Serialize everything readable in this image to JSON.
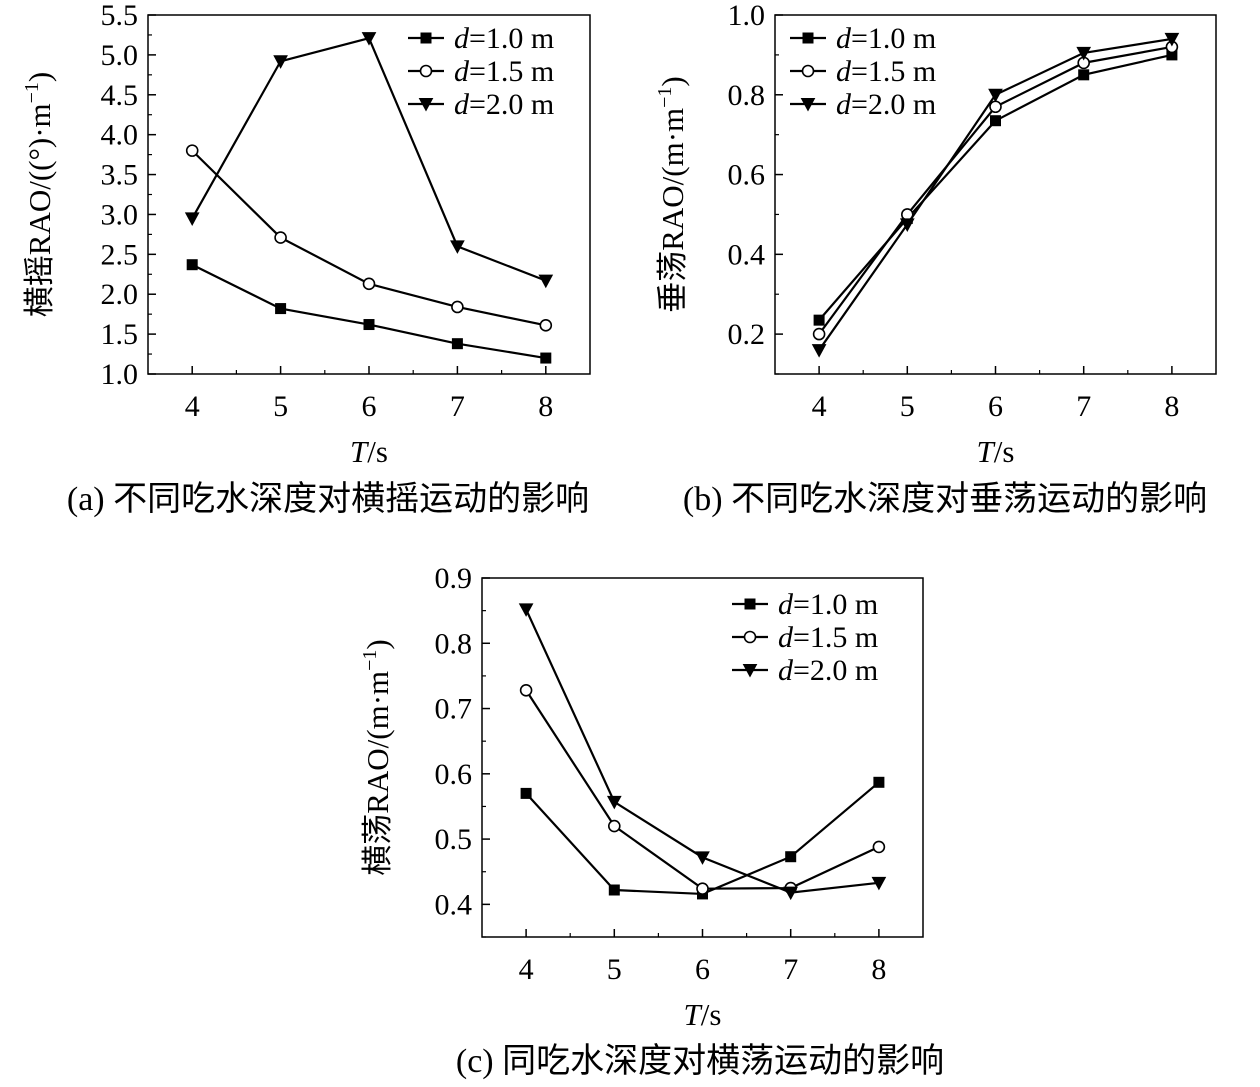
{
  "chart_data": [
    {
      "id": "a",
      "type": "line",
      "caption": "(a) 不同吃水深度对横摇运动的影响",
      "xlabel_var": "T",
      "xlabel_unit": "/s",
      "ylabel": "横摇RAO/((°)·m",
      "ylabel_sup": "−1",
      "ylabel_close": ")",
      "x": [
        4,
        5,
        6,
        7,
        8
      ],
      "xlim": [
        3.5,
        8.5
      ],
      "ylim": [
        1.0,
        5.5
      ],
      "xticks": [
        "4",
        "5",
        "6",
        "7",
        "8"
      ],
      "yticks": [
        "1.0",
        "1.5",
        "2.0",
        "2.5",
        "3.0",
        "3.5",
        "4.0",
        "4.5",
        "5.0",
        "5.5"
      ],
      "legend_position": "top-right",
      "series": [
        {
          "name_var": "d",
          "name_rest": "=1.0 m",
          "marker": "square",
          "values": [
            2.37,
            1.82,
            1.62,
            1.38,
            1.2
          ]
        },
        {
          "name_var": "d",
          "name_rest": "=1.5 m",
          "marker": "circle",
          "values": [
            3.8,
            2.71,
            2.13,
            1.84,
            1.61
          ]
        },
        {
          "name_var": "d",
          "name_rest": "=2.0 m",
          "marker": "triangle-down",
          "values": [
            2.95,
            4.92,
            5.21,
            2.6,
            2.17
          ]
        }
      ]
    },
    {
      "id": "b",
      "type": "line",
      "caption": "(b) 不同吃水深度对垂荡运动的影响",
      "xlabel_var": "T",
      "xlabel_unit": "/s",
      "ylabel": "垂荡RAO/(m·m",
      "ylabel_sup": "−1",
      "ylabel_close": ")",
      "x": [
        4,
        5,
        6,
        7,
        8
      ],
      "xlim": [
        3.5,
        8.5
      ],
      "ylim": [
        0.1,
        1.0
      ],
      "xticks": [
        "4",
        "5",
        "6",
        "7",
        "8"
      ],
      "yticks": [
        "0.2",
        "0.4",
        "0.6",
        "0.8",
        "1.0"
      ],
      "legend_position": "top-left",
      "series": [
        {
          "name_var": "d",
          "name_rest": "=1.0 m",
          "marker": "square",
          "values": [
            0.235,
            0.49,
            0.735,
            0.85,
            0.9
          ]
        },
        {
          "name_var": "d",
          "name_rest": "=1.5 m",
          "marker": "circle",
          "values": [
            0.2,
            0.5,
            0.77,
            0.88,
            0.92
          ]
        },
        {
          "name_var": "d",
          "name_rest": "=2.0 m",
          "marker": "triangle-down",
          "values": [
            0.16,
            0.475,
            0.8,
            0.905,
            0.94
          ]
        }
      ]
    },
    {
      "id": "c",
      "type": "line",
      "caption": "(c) 同吃水深度对横荡运动的影响",
      "xlabel_var": "T",
      "xlabel_unit": "/s",
      "ylabel": "横荡RAO/(m·m",
      "ylabel_sup": "−1",
      "ylabel_close": ")",
      "x": [
        4,
        5,
        6,
        7,
        8
      ],
      "xlim": [
        3.5,
        8.5
      ],
      "ylim": [
        0.35,
        0.9
      ],
      "xticks": [
        "4",
        "5",
        "6",
        "7",
        "8"
      ],
      "yticks": [
        "0.4",
        "0.5",
        "0.6",
        "0.7",
        "0.8",
        "0.9"
      ],
      "legend_position": "top-right",
      "series": [
        {
          "name_var": "d",
          "name_rest": "=1.0 m",
          "marker": "square",
          "values": [
            0.57,
            0.422,
            0.416,
            0.473,
            0.587
          ]
        },
        {
          "name_var": "d",
          "name_rest": "=1.5 m",
          "marker": "circle",
          "values": [
            0.728,
            0.52,
            0.424,
            0.425,
            0.488
          ]
        },
        {
          "name_var": "d",
          "name_rest": "=2.0 m",
          "marker": "triangle-down",
          "values": [
            0.852,
            0.557,
            0.472,
            0.418,
            0.433
          ]
        }
      ]
    }
  ]
}
